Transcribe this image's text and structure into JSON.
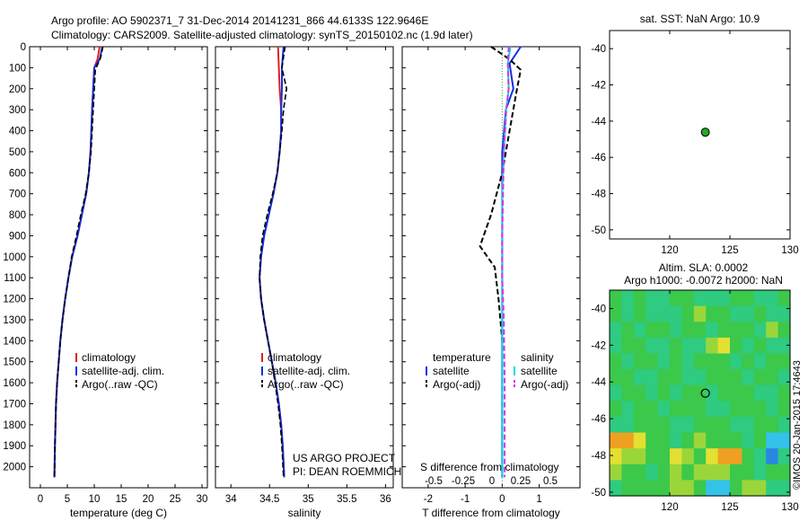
{
  "title": {
    "line1": "Argo profile: AO 5902371_7 31-Dec-2014 20141231_866 44.6133S 122.9646E",
    "line2": "Climatology: CARS2009. Satellite-adjusted climatology: synTS_20150102.nc (1.9d later)"
  },
  "watermark": "©IMOS 20-Jan-2015 17:4643",
  "project_note": {
    "line1": "US ARGO PROJECT",
    "line2": "PI: DEAN ROEMMICH"
  },
  "colors": {
    "climatology": "#e02020",
    "satellite": "#1030e0",
    "argo": "#000000",
    "sal_satellite": "#00d8e8",
    "sal_argo": "#e030e0"
  },
  "chart_data": [
    {
      "type": "line",
      "xlabel": "temperature (deg C)",
      "ylabel": "",
      "xlim": [
        -2,
        31
      ],
      "ylim": [
        2100,
        0
      ],
      "xticks": [
        0,
        5,
        10,
        15,
        20,
        25,
        30
      ],
      "yticks": [
        0,
        100,
        200,
        300,
        400,
        500,
        600,
        700,
        800,
        900,
        1000,
        1100,
        1200,
        1300,
        1400,
        1500,
        1600,
        1700,
        1800,
        1900,
        2000
      ],
      "legend": [
        "climatology",
        "satellite-adj. clim.",
        "Argo(..raw -QC)"
      ],
      "series": [
        {
          "name": "climatology",
          "style": "solid",
          "x": [
            11.0,
            10.6,
            10.0,
            9.6,
            9.3,
            9.0,
            8.5,
            7.7,
            6.9,
            5.9,
            5.2,
            4.6,
            4.1,
            3.7,
            3.4,
            3.1,
            2.9,
            2.8,
            2.7,
            2.6
          ],
          "y": [
            0,
            60,
            100,
            300,
            500,
            600,
            700,
            800,
            900,
            1000,
            1100,
            1200,
            1300,
            1400,
            1500,
            1600,
            1700,
            1800,
            1900,
            2050
          ]
        },
        {
          "name": "satellite-adj. clim.",
          "style": "solid",
          "x": [
            11.5,
            11.0,
            10.0,
            9.6,
            9.3,
            9.0,
            8.5,
            7.7,
            6.9,
            5.9,
            5.2,
            4.6,
            4.1,
            3.7,
            3.4,
            3.1,
            2.9,
            2.8,
            2.7,
            2.6
          ],
          "y": [
            0,
            60,
            100,
            300,
            500,
            600,
            700,
            800,
            900,
            1000,
            1100,
            1200,
            1300,
            1400,
            1500,
            1600,
            1700,
            1800,
            1900,
            2050
          ]
        },
        {
          "name": "Argo(..raw -QC)",
          "style": "dashed",
          "x": [
            11.6,
            11.2,
            10.2,
            9.8,
            9.4,
            9.0,
            8.4,
            7.5,
            6.7,
            5.8,
            5.2,
            4.6,
            4.1,
            3.7,
            3.4,
            3.1,
            2.9,
            2.8,
            2.7,
            2.6
          ],
          "y": [
            0,
            50,
            110,
            300,
            500,
            600,
            700,
            800,
            900,
            1000,
            1100,
            1200,
            1300,
            1400,
            1500,
            1600,
            1700,
            1800,
            1900,
            2050
          ]
        }
      ]
    },
    {
      "type": "line",
      "xlabel": "salinity",
      "xlim": [
        33.8,
        36.1
      ],
      "ylim": [
        2100,
        0
      ],
      "xticks": [
        34,
        34.5,
        35,
        35.5,
        36
      ],
      "xtick_labels": [
        "34",
        "34.5",
        "35",
        "35.5",
        "36"
      ],
      "legend": [
        "climatology",
        "satellite-adj. clim.",
        "Argo(..raw -QC)"
      ],
      "series": [
        {
          "name": "climatology",
          "style": "solid",
          "x": [
            34.61,
            34.62,
            34.63,
            34.65,
            34.65,
            34.63,
            34.6,
            34.55,
            34.49,
            34.43,
            34.39,
            34.37,
            34.39,
            34.43,
            34.48,
            34.53,
            34.58,
            34.62,
            34.65,
            34.67,
            34.69
          ],
          "y": [
            0,
            100,
            200,
            300,
            400,
            500,
            600,
            700,
            800,
            900,
            1000,
            1100,
            1200,
            1300,
            1400,
            1500,
            1600,
            1700,
            1800,
            1900,
            2050
          ]
        },
        {
          "name": "satellite-adj. clim.",
          "style": "solid",
          "x": [
            34.68,
            34.66,
            34.66,
            34.65,
            34.65,
            34.63,
            34.6,
            34.55,
            34.49,
            34.43,
            34.39,
            34.37,
            34.39,
            34.43,
            34.48,
            34.53,
            34.58,
            34.62,
            34.65,
            34.67,
            34.69
          ],
          "y": [
            0,
            100,
            200,
            300,
            400,
            500,
            600,
            700,
            800,
            900,
            1000,
            1100,
            1200,
            1300,
            1400,
            1500,
            1600,
            1700,
            1800,
            1900,
            2050
          ]
        },
        {
          "name": "Argo(..raw -QC)",
          "style": "dashed",
          "x": [
            34.7,
            34.66,
            34.72,
            34.68,
            34.66,
            34.63,
            34.6,
            34.54,
            34.47,
            34.41,
            34.38,
            34.37,
            34.39,
            34.43,
            34.48,
            34.53,
            34.57,
            34.61,
            34.64,
            34.66,
            34.68
          ],
          "y": [
            0,
            100,
            200,
            300,
            400,
            500,
            600,
            700,
            800,
            900,
            1000,
            1100,
            1200,
            1300,
            1400,
            1500,
            1600,
            1700,
            1800,
            1900,
            2050
          ]
        }
      ]
    },
    {
      "type": "line",
      "xlabel": "T difference from climatology",
      "top_axis_label": "S difference from climatology",
      "xlim": [
        -2.7,
        2.1
      ],
      "ylim": [
        2100,
        0
      ],
      "xticks": [
        -2,
        -1,
        0,
        1
      ],
      "xtick_labels": [
        "-2",
        "-1",
        "0",
        "1"
      ],
      "top_ticks": [
        -0.5,
        -0.25,
        0,
        0.25,
        0.5
      ],
      "top_tick_labels": [
        "-0.5",
        "-0.25",
        "0",
        "0.25",
        "0.5"
      ],
      "legend_groups": [
        {
          "title": "temperature",
          "items": [
            "satellite",
            "Argo(-adj)"
          ]
        },
        {
          "title": "salinity",
          "items": [
            "satellite",
            "Argo(-adj)"
          ]
        }
      ],
      "series": [
        {
          "name": "temperature satellite",
          "style": "solid",
          "x": [
            0.5,
            0.2,
            0.3,
            0.1,
            0.0,
            0.0,
            0.0,
            0.0,
            0.0,
            0.0,
            0.0,
            0.0,
            0.0,
            0.0,
            0.0
          ],
          "y": [
            0,
            80,
            200,
            300,
            500,
            700,
            900,
            1000,
            1100,
            1300,
            1500,
            1700,
            1900,
            2000,
            2050
          ]
        },
        {
          "name": "temperature Argo(-adj)",
          "style": "dashed",
          "x": [
            -0.3,
            0.2,
            0.5,
            0.4,
            0.2,
            0.0,
            -0.3,
            -0.6,
            -0.2,
            -0.1,
            0.0,
            0.0,
            0.0,
            0.0,
            0.0
          ],
          "y": [
            0,
            60,
            110,
            200,
            400,
            600,
            800,
            950,
            1050,
            1200,
            1400,
            1600,
            1800,
            2000,
            2050
          ]
        },
        {
          "name": "salinity satellite",
          "style": "solid",
          "x": [
            0.1,
            0.07,
            0.08,
            0.05,
            0.02,
            0.0,
            0.0,
            0.0,
            0.0,
            0.0,
            0.0,
            0.0
          ],
          "y": [
            0,
            80,
            200,
            300,
            500,
            700,
            900,
            1100,
            1300,
            1600,
            1900,
            2050
          ]
        },
        {
          "name": "salinity Argo(-adj)",
          "style": "dashed",
          "x": [
            0.08,
            0.07,
            0.08,
            0.05,
            0.02,
            0.01,
            0.0,
            0.0,
            0.02,
            0.03,
            0.03,
            0.03
          ],
          "y": [
            0,
            80,
            200,
            300,
            500,
            700,
            900,
            1100,
            1300,
            1600,
            1900,
            2050
          ]
        }
      ]
    },
    {
      "type": "scatter",
      "title": "sat. SST: NaN Argo: 10.9",
      "xlim": [
        115,
        130
      ],
      "ylim": [
        -50.5,
        -39
      ],
      "xticks": [
        120,
        125,
        130
      ],
      "yticks": [
        -40,
        -42,
        -44,
        -46,
        -48,
        -50
      ],
      "points": [
        {
          "x": 122.96,
          "y": -44.61,
          "color": "#22aa22"
        }
      ]
    },
    {
      "type": "heatmap",
      "title_line1": "Altim. SLA: 0.0002",
      "title_line2": "Argo h1000: -0.0072 h2000: NaN",
      "xlim": [
        115,
        130
      ],
      "ylim": [
        -50.2,
        -39
      ],
      "xticks": [
        120,
        125,
        130
      ],
      "yticks": [
        -40,
        -42,
        -44,
        -46,
        -48,
        -50
      ],
      "colors": [
        "#2a86e0",
        "#33c2e8",
        "#2ecb80",
        "#3cc84a",
        "#9ad63a",
        "#e3e032",
        "#f0a020",
        "#e24a20"
      ],
      "values": [
        [
          0.42,
          0.32,
          0.38,
          0.3,
          0.22,
          0.36,
          0.4,
          0.35,
          0.28,
          0.34,
          0.45,
          0.38,
          0.3,
          0.34,
          0.4
        ],
        [
          0.38,
          0.28,
          0.44,
          0.34,
          0.26,
          0.32,
          0.46,
          0.52,
          0.36,
          0.4,
          0.32,
          0.3,
          0.44,
          0.28,
          0.34
        ],
        [
          0.34,
          0.36,
          0.3,
          0.4,
          0.46,
          0.3,
          0.36,
          0.4,
          0.34,
          0.38,
          0.36,
          0.42,
          0.3,
          0.62,
          0.38
        ],
        [
          0.3,
          0.4,
          0.36,
          0.28,
          0.32,
          0.42,
          0.34,
          0.3,
          0.62,
          0.7,
          0.36,
          0.3,
          0.4,
          0.34,
          0.3
        ],
        [
          0.36,
          0.32,
          0.44,
          0.38,
          0.3,
          0.36,
          0.28,
          0.4,
          0.46,
          0.36,
          0.32,
          0.38,
          0.34,
          0.4,
          0.36
        ],
        [
          0.4,
          0.36,
          0.3,
          0.34,
          0.44,
          0.4,
          0.34,
          0.3,
          0.36,
          0.42,
          0.36,
          0.3,
          0.42,
          0.36,
          0.32
        ],
        [
          0.32,
          0.42,
          0.36,
          0.3,
          0.36,
          0.32,
          0.44,
          0.36,
          0.3,
          0.36,
          0.44,
          0.36,
          0.3,
          0.34,
          0.4
        ],
        [
          0.38,
          0.34,
          0.4,
          0.36,
          0.3,
          0.38,
          0.36,
          0.42,
          0.34,
          0.3,
          0.36,
          0.4,
          0.36,
          0.32,
          0.36
        ],
        [
          0.34,
          0.3,
          0.36,
          0.42,
          0.38,
          0.34,
          0.3,
          0.36,
          0.4,
          0.36,
          0.3,
          0.34,
          0.38,
          0.42,
          0.34
        ],
        [
          0.86,
          0.9,
          0.7,
          0.46,
          0.36,
          0.32,
          0.42,
          0.54,
          0.4,
          0.38,
          0.36,
          0.3,
          0.4,
          0.14,
          0.2
        ],
        [
          0.78,
          0.62,
          0.52,
          0.4,
          0.44,
          0.7,
          0.52,
          0.48,
          0.66,
          0.8,
          0.86,
          0.44,
          0.26,
          0.06,
          0.34
        ],
        [
          0.5,
          0.44,
          0.36,
          0.3,
          0.4,
          0.62,
          0.46,
          0.5,
          0.56,
          0.62,
          0.46,
          0.36,
          0.3,
          0.4,
          0.44
        ],
        [
          0.3,
          0.4,
          0.46,
          0.36,
          0.42,
          0.5,
          0.62,
          0.36,
          0.1,
          0.14,
          0.4,
          0.56,
          0.62,
          0.34,
          0.3
        ]
      ],
      "points": [
        {
          "x": 122.96,
          "y": -44.61
        }
      ]
    }
  ]
}
